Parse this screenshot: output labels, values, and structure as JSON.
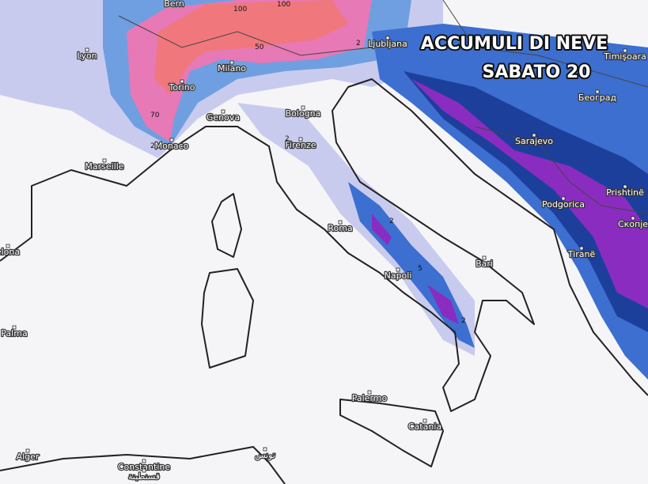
{
  "map": {
    "title": [
      "ACCUMULI DI NEVE",
      "SABATO 20"
    ],
    "cities": [
      "Bern",
      "Lyon",
      "Milano",
      "Torino",
      "Genova",
      "Monaco",
      "Marseille",
      "Bologna",
      "Firenze",
      "Ljubljana",
      "Timişoara",
      "Београд",
      "Sarajevo",
      "Podgorica",
      "Prishtinë",
      "Скопје",
      "Tiranë",
      "Roma",
      "Napoli",
      "Bari",
      "Palermo",
      "Catania",
      "Palma",
      "Alger",
      "Constantine",
      "قسنطينة",
      "تونس",
      "elona"
    ],
    "contour_labels": [
      2,
      70,
      100,
      50,
      100,
      2,
      2,
      2,
      5,
      2
    ]
  }
}
